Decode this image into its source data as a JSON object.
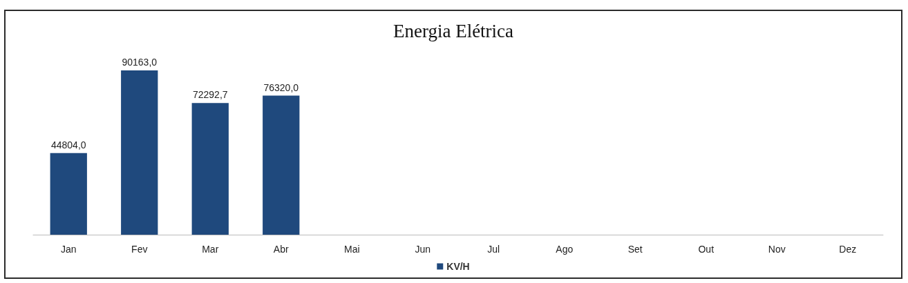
{
  "chart_data": {
    "type": "bar",
    "title": "Energia Elétrica",
    "categories": [
      "Jan",
      "Fev",
      "Mar",
      "Abr",
      "Mai",
      "Jun",
      "Jul",
      "Ago",
      "Set",
      "Out",
      "Nov",
      "Dez"
    ],
    "series": [
      {
        "name": "KV/H",
        "color": "#1f497d",
        "values": [
          44804.0,
          90163.0,
          72292.7,
          76320.0,
          null,
          null,
          null,
          null,
          null,
          null,
          null,
          null
        ],
        "value_labels": [
          "44804,0",
          "90163,0",
          "72292,7",
          "76320,0",
          null,
          null,
          null,
          null,
          null,
          null,
          null,
          null
        ]
      }
    ],
    "legend": "bottom",
    "grid": false
  }
}
